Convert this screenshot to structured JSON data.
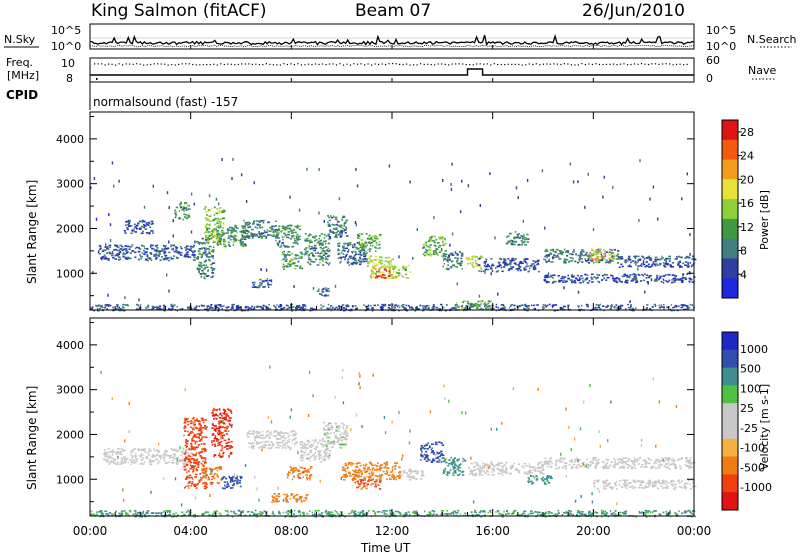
{
  "header": {
    "station": "King Salmon (fitACF)",
    "beam": "Beam 07",
    "date": "26/Jun/2010"
  },
  "summary_panels": {
    "nsky_label": "N.Sky",
    "nsearch_label": "N.Search",
    "noise_ticks": [
      "10^5",
      "10^0"
    ],
    "freq_label_1": "Freq.",
    "freq_label_2": "[MHz]",
    "freq_ticks": [
      "10",
      "8"
    ],
    "nave_label": "Nave",
    "nave_ticks": [
      "60",
      "0"
    ],
    "cpid_label": "CPID",
    "cpid_text": "normalsound (fast) -157"
  },
  "axes": {
    "xlabel": "Time UT",
    "ylabel": "Slant Range [km]",
    "xticks": [
      "00:00",
      "04:00",
      "08:00",
      "12:00",
      "16:00",
      "20:00",
      "00:00"
    ],
    "yticks": [
      "1000",
      "2000",
      "3000",
      "4000"
    ],
    "xlim_hours": [
      0,
      24
    ],
    "ylim_km": [
      180,
      4600
    ]
  },
  "colors": {
    "power": [
      "#1e28dc",
      "#2f3f9d",
      "#3f7f7f",
      "#3f9a3f",
      "#8fd03a",
      "#e6e23c",
      "#f29e1c",
      "#f25a10",
      "#dc1414"
    ],
    "velocity": [
      "#e01414",
      "#f04010",
      "#f07c14",
      "#f4b040",
      "#c8c8c8",
      "#c8c8c8",
      "#50c040",
      "#3f8f8f",
      "#2f4fb0",
      "#1e28c8"
    ]
  },
  "chart_data": [
    {
      "type": "heatmap",
      "name": "power",
      "title": "Beam 07",
      "xlabel": "Time UT",
      "ylabel": "Slant Range [km]",
      "colorbar_label": "Power [dB]",
      "colorbar_ticks": [
        "4",
        "8",
        "12",
        "16",
        "20",
        "24",
        "28"
      ],
      "colorbar_range": [
        0,
        30
      ],
      "xlim": [
        0,
        24
      ],
      "ylim": [
        180,
        4600
      ],
      "regions": [
        {
          "t0": 0.3,
          "t1": 4.2,
          "r0": 1300,
          "r1": 1650,
          "v": 6
        },
        {
          "t0": 1.3,
          "t1": 2.5,
          "r0": 1900,
          "r1": 2200,
          "v": 5
        },
        {
          "t0": 3.3,
          "t1": 3.9,
          "r0": 2200,
          "r1": 2600,
          "v": 10
        },
        {
          "t0": 4.2,
          "t1": 4.9,
          "r0": 900,
          "r1": 1800,
          "v": 9
        },
        {
          "t0": 4.5,
          "t1": 5.3,
          "r0": 1700,
          "r1": 2500,
          "v": 14
        },
        {
          "t0": 5.0,
          "t1": 6.2,
          "r0": 1600,
          "r1": 2100,
          "v": 10
        },
        {
          "t0": 6.0,
          "t1": 7.5,
          "r0": 1800,
          "r1": 2200,
          "v": 9
        },
        {
          "t0": 7.3,
          "t1": 8.3,
          "r0": 1600,
          "r1": 2100,
          "v": 10
        },
        {
          "t0": 7.6,
          "t1": 8.4,
          "r0": 1100,
          "r1": 1500,
          "v": 11
        },
        {
          "t0": 8.5,
          "t1": 9.5,
          "r0": 1200,
          "r1": 1900,
          "v": 10
        },
        {
          "t0": 9.4,
          "t1": 10.2,
          "r0": 1800,
          "r1": 2300,
          "v": 8
        },
        {
          "t0": 9.8,
          "t1": 11.0,
          "r0": 1200,
          "r1": 1700,
          "v": 7
        },
        {
          "t0": 10.6,
          "t1": 11.5,
          "r0": 1500,
          "r1": 1900,
          "v": 12
        },
        {
          "t0": 11.0,
          "t1": 12.0,
          "r0": 900,
          "r1": 1400,
          "v": 17
        },
        {
          "t0": 11.3,
          "t1": 11.9,
          "r0": 900,
          "r1": 1100,
          "v": 26
        },
        {
          "t0": 12.0,
          "t1": 12.7,
          "r0": 900,
          "r1": 1200,
          "v": 16
        },
        {
          "t0": 6.4,
          "t1": 7.2,
          "r0": 700,
          "r1": 900,
          "v": 6
        },
        {
          "t0": 13.2,
          "t1": 14.1,
          "r0": 1400,
          "r1": 1850,
          "v": 13
        },
        {
          "t0": 14.0,
          "t1": 14.8,
          "r0": 1100,
          "r1": 1500,
          "v": 8
        },
        {
          "t0": 14.9,
          "t1": 15.6,
          "r0": 1150,
          "r1": 1400,
          "v": 18
        },
        {
          "t0": 15.4,
          "t1": 17.8,
          "r0": 1050,
          "r1": 1350,
          "v": 5
        },
        {
          "t0": 16.5,
          "t1": 17.4,
          "r0": 1650,
          "r1": 1950,
          "v": 9
        },
        {
          "t0": 18.0,
          "t1": 21.0,
          "r0": 1250,
          "r1": 1550,
          "v": 8
        },
        {
          "t0": 19.8,
          "t1": 20.8,
          "r0": 1300,
          "r1": 1550,
          "v": 20
        },
        {
          "t0": 21.0,
          "t1": 24.0,
          "r0": 1150,
          "r1": 1400,
          "v": 6
        },
        {
          "t0": 18.0,
          "t1": 24.0,
          "r0": 800,
          "r1": 1000,
          "v": 5
        },
        {
          "t0": 0.0,
          "t1": 24.0,
          "r0": 180,
          "r1": 320,
          "v": 6
        },
        {
          "t0": 9.0,
          "t1": 9.5,
          "r0": 500,
          "r1": 700,
          "v": 6
        },
        {
          "t0": 14.5,
          "t1": 16.0,
          "r0": 200,
          "r1": 400,
          "v": 12
        }
      ]
    },
    {
      "type": "heatmap",
      "name": "velocity",
      "xlabel": "Time UT",
      "ylabel": "Slant Range [km]",
      "colorbar_label": "Velocity [m s-1]",
      "colorbar_ticks": [
        "1000",
        "500",
        "100",
        "25",
        "-25",
        "-100",
        "-500",
        "-1000"
      ],
      "colorbar_range": [
        -1200,
        1200
      ],
      "xlim": [
        0,
        24
      ],
      "ylim": [
        180,
        4600
      ],
      "regions": [
        {
          "t0": 0.5,
          "t1": 4.0,
          "r0": 1350,
          "r1": 1700,
          "v": 0
        },
        {
          "t0": 3.7,
          "t1": 4.6,
          "r0": 800,
          "r1": 2400,
          "v": -700
        },
        {
          "t0": 4.8,
          "t1": 5.6,
          "r0": 1500,
          "r1": 2600,
          "v": -1000
        },
        {
          "t0": 4.4,
          "t1": 5.2,
          "r0": 900,
          "r1": 1300,
          "v": -400
        },
        {
          "t0": 5.2,
          "t1": 6.0,
          "r0": 800,
          "r1": 1100,
          "v": 800
        },
        {
          "t0": 6.2,
          "t1": 8.2,
          "r0": 1700,
          "r1": 2100,
          "v": 0
        },
        {
          "t0": 8.3,
          "t1": 9.5,
          "r0": 1400,
          "r1": 1900,
          "v": 5
        },
        {
          "t0": 7.8,
          "t1": 8.8,
          "r0": 1000,
          "r1": 1300,
          "v": -400
        },
        {
          "t0": 9.2,
          "t1": 10.2,
          "r0": 1700,
          "r1": 2300,
          "v": 10
        },
        {
          "t0": 10.0,
          "t1": 12.3,
          "r0": 1000,
          "r1": 1400,
          "v": -300
        },
        {
          "t0": 10.5,
          "t1": 11.5,
          "r0": 800,
          "r1": 1000,
          "v": -600
        },
        {
          "t0": 7.2,
          "t1": 8.6,
          "r0": 500,
          "r1": 700,
          "v": -200
        },
        {
          "t0": 12.3,
          "t1": 13.2,
          "r0": 1000,
          "r1": 1250,
          "v": 0
        },
        {
          "t0": 13.1,
          "t1": 14.0,
          "r0": 1400,
          "r1": 1850,
          "v": 700
        },
        {
          "t0": 14.0,
          "t1": 14.9,
          "r0": 1100,
          "r1": 1500,
          "v": 150
        },
        {
          "t0": 15.0,
          "t1": 18.0,
          "r0": 1100,
          "r1": 1400,
          "v": 0
        },
        {
          "t0": 17.3,
          "t1": 18.3,
          "r0": 900,
          "r1": 1100,
          "v": 150
        },
        {
          "t0": 18.0,
          "t1": 24.0,
          "r0": 1250,
          "r1": 1500,
          "v": 0
        },
        {
          "t0": 20.0,
          "t1": 24.0,
          "r0": 800,
          "r1": 1000,
          "v": 0
        },
        {
          "t0": 0.0,
          "t1": 24.0,
          "r0": 180,
          "r1": 320,
          "v": 120
        }
      ]
    }
  ]
}
